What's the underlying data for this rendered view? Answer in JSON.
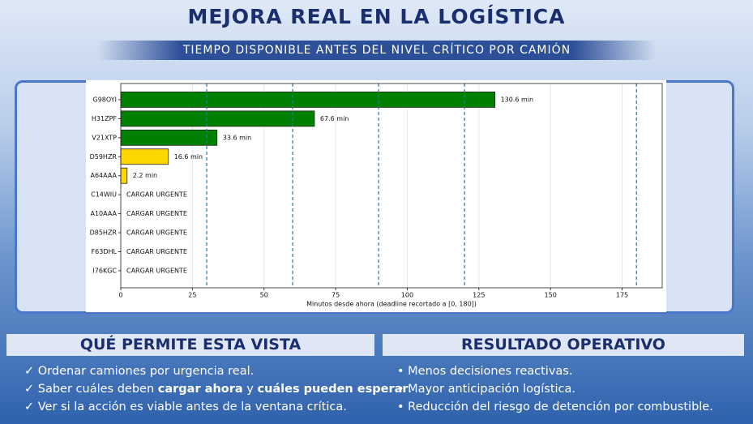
{
  "title": "MEJORA REAL EN LA LOGÍSTICA",
  "subtitle": "TIEMPO DISPONIBLE ANTES DEL NIVEL CRÍTICO POR CAMIÓN",
  "chart_data": {
    "type": "hbar",
    "categories": [
      "G98OYI",
      "H31ZPF",
      "V21XTP",
      "D59HZR",
      "A64AAA",
      "C14WIU",
      "A10AAA",
      "D85HZR",
      "F63DHL",
      "I76KGC"
    ],
    "values": [
      130.6,
      67.6,
      33.6,
      16.6,
      2.2,
      0,
      0,
      0,
      0,
      0
    ],
    "value_labels": [
      "130.6 min",
      "67.6 min",
      "33.6 min",
      "16.6 min",
      "2.2 min",
      "CARGAR URGENTE",
      "CARGAR URGENTE",
      "CARGAR URGENTE",
      "CARGAR URGENTE",
      "CARGAR URGENTE"
    ],
    "colors": [
      "#008000",
      "#008000",
      "#008000",
      "#ffd700",
      "#ffd700",
      "#ffd700",
      "#ffd700",
      "#ffd700",
      "#ffd700",
      "#ffd700"
    ],
    "xlim": [
      0,
      189
    ],
    "xticks": [
      0,
      25,
      50,
      75,
      100,
      125,
      150,
      175
    ],
    "x_label": "Minutos desde ahora (deadline recortado a [0, 180])",
    "grid": true,
    "reference_lines": [
      30,
      60,
      90,
      120,
      180
    ],
    "reference_color": "#1f77b4"
  },
  "left_panel": {
    "heading": "QUÉ PERMITE ESTA VISTA",
    "items": [
      [
        {
          "text": "Ordenar camiones por urgencia real."
        }
      ],
      [
        {
          "text": "Saber cuáles deben "
        },
        {
          "text": "cargar ahora",
          "bold": true
        },
        {
          "text": " y "
        },
        {
          "text": "cuáles pueden esperar",
          "bold": true
        },
        {
          "text": "."
        }
      ],
      [
        {
          "text": "Ver si la acción es viable antes de la ventana crítica."
        }
      ]
    ]
  },
  "right_panel": {
    "heading": "RESULTADO OPERATIVO",
    "items": [
      "Menos decisiones reactivas.",
      "Mayor anticipación logística.",
      "Reducción del riesgo de detención por combustible."
    ]
  }
}
